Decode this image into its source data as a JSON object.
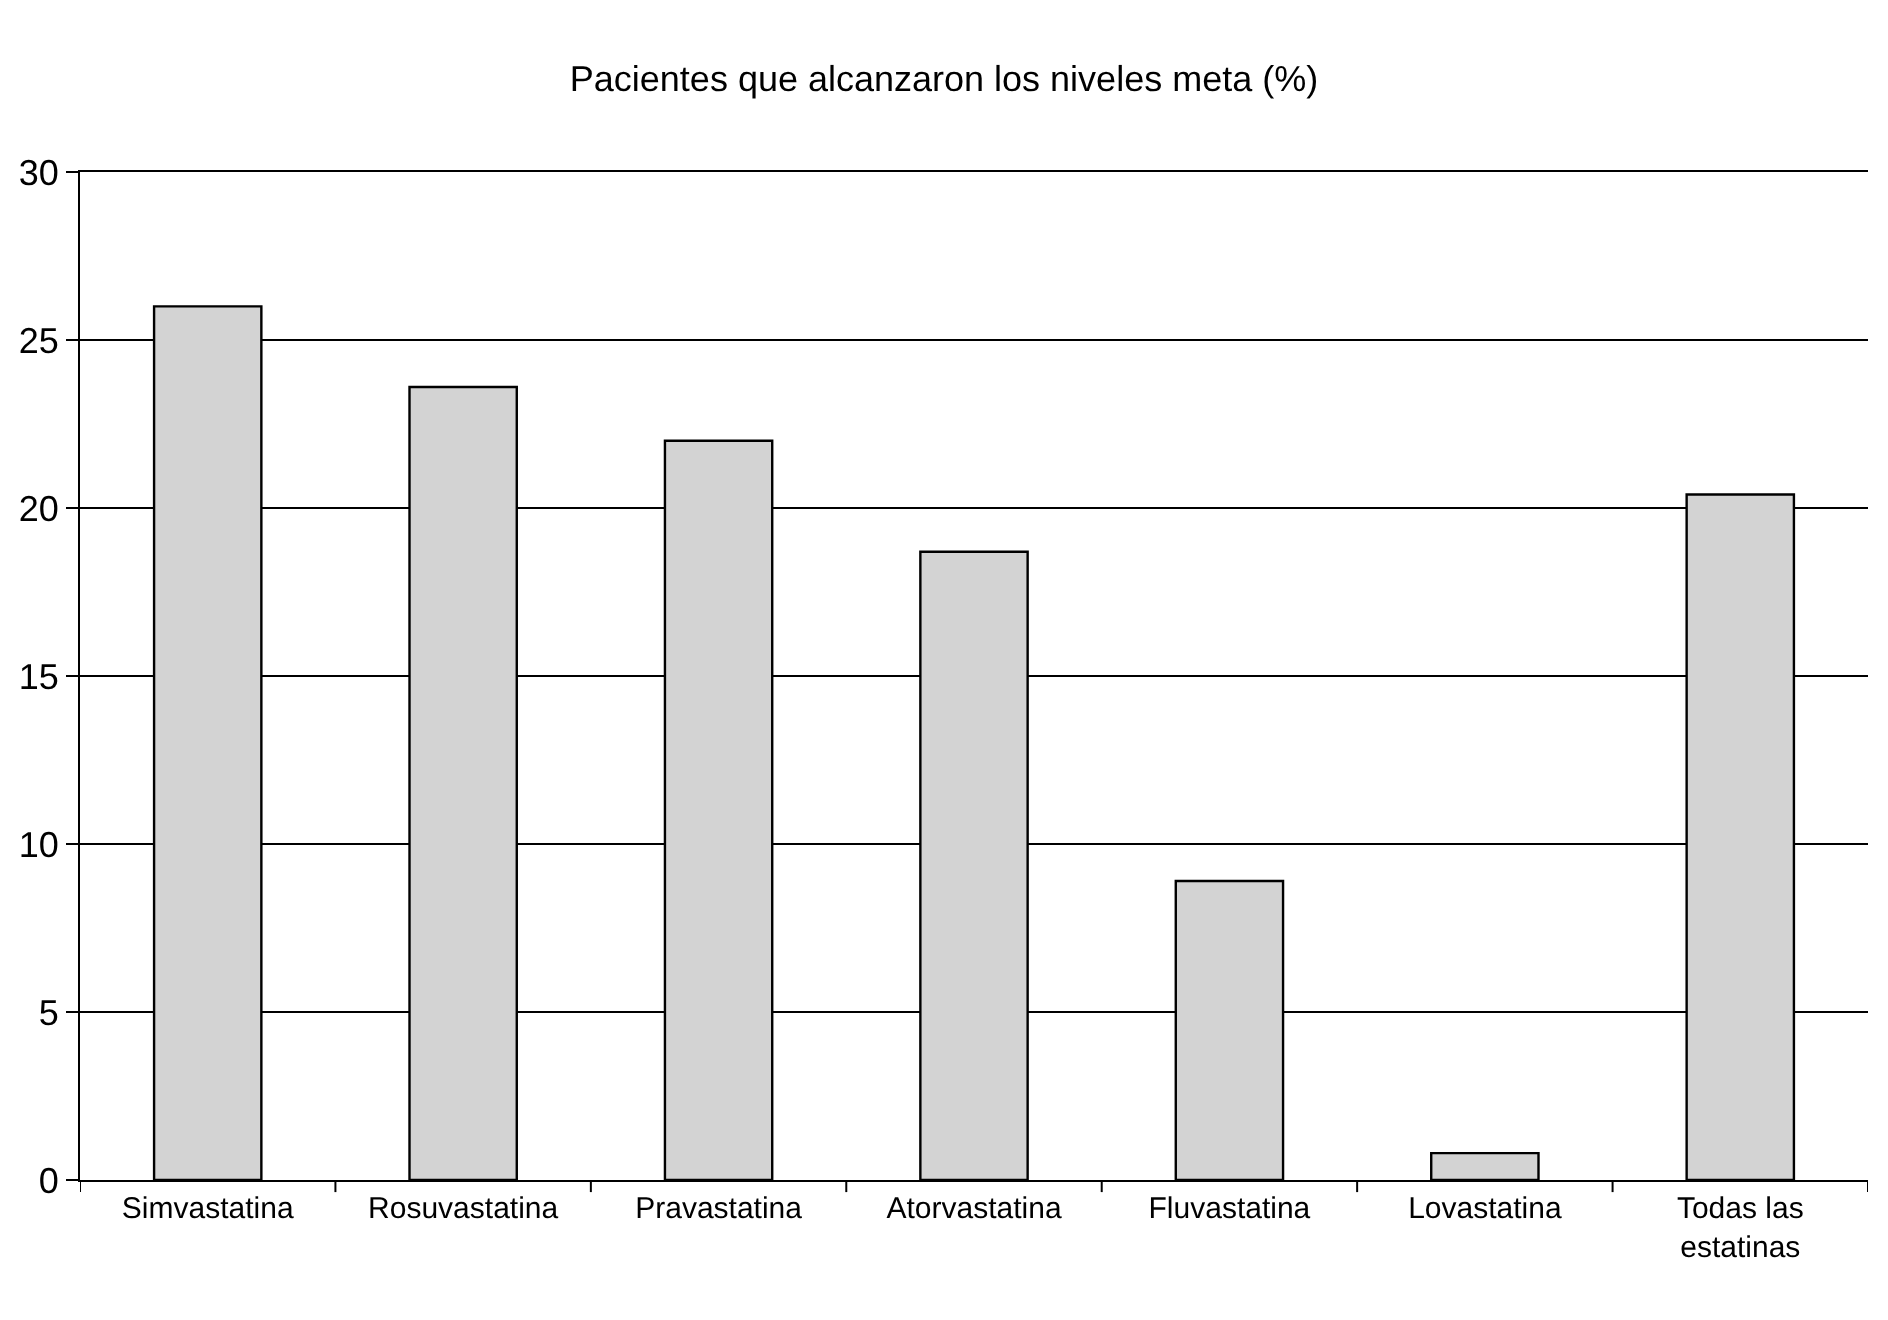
{
  "chart_data": {
    "type": "bar",
    "title": "Pacientes que alcanzaron los niveles meta (%)",
    "categories": [
      "Simvastatina",
      "Rosuvastatina",
      "Pravastatina",
      "Atorvastatina",
      "Fluvastatina",
      "Lovastatina",
      "Todas las estatinas"
    ],
    "series": [
      {
        "color": "#d3d3d3",
        "values": [
          26.0,
          23.6,
          22.0,
          18.7,
          8.9,
          0.8,
          20.4
        ]
      }
    ],
    "ylim": [
      0,
      30
    ],
    "yticks": [
      0,
      5,
      10,
      15,
      20,
      25,
      30
    ],
    "grid": "y"
  }
}
